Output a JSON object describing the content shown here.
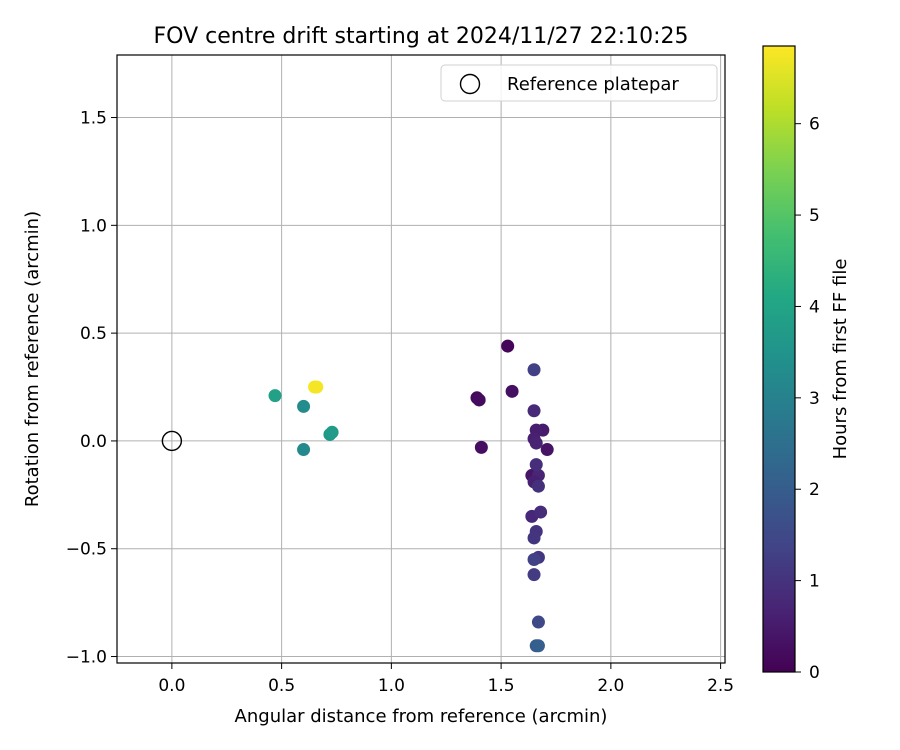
{
  "chart_data": {
    "type": "scatter",
    "title": "FOV centre drift starting at 2024/11/27 22:10:25",
    "xlabel": "Angular distance from reference (arcmin)",
    "ylabel": "Rotation from reference (arcmin)",
    "xlim": [
      -0.25,
      2.52
    ],
    "ylim": [
      -1.03,
      1.79
    ],
    "xticks": [
      0.0,
      0.5,
      1.0,
      1.5,
      2.0,
      2.5
    ],
    "yticks": [
      -1.0,
      -0.5,
      0.0,
      0.5,
      1.0,
      1.5
    ],
    "xtick_labels": [
      "0.0",
      "0.5",
      "1.0",
      "1.5",
      "2.0",
      "2.5"
    ],
    "ytick_labels": [
      "−1.0",
      "−0.5",
      "0.0",
      "0.5",
      "1.0",
      "1.5"
    ],
    "grid": true,
    "legend": {
      "position": "top-right",
      "entries": [
        "Reference platepar"
      ]
    },
    "reference_point": {
      "x": 0.0,
      "y": 0.0,
      "label": "Reference platepar"
    },
    "colorbar": {
      "label": "Hours from first FF file",
      "colormap": "viridis",
      "range": [
        0,
        6.85
      ],
      "ticks": [
        0,
        1,
        2,
        3,
        4,
        5,
        6
      ],
      "tick_labels": [
        "0",
        "1",
        "2",
        "3",
        "4",
        "5",
        "6"
      ]
    },
    "points": [
      {
        "x": 1.53,
        "y": 0.44,
        "hours": 0.1
      },
      {
        "x": 1.39,
        "y": 0.2,
        "hours": 0.15
      },
      {
        "x": 1.4,
        "y": 0.19,
        "hours": 0.2
      },
      {
        "x": 1.55,
        "y": 0.23,
        "hours": 0.3
      },
      {
        "x": 1.41,
        "y": -0.03,
        "hours": 0.25
      },
      {
        "x": 1.71,
        "y": -0.04,
        "hours": 0.35
      },
      {
        "x": 1.69,
        "y": 0.05,
        "hours": 0.5
      },
      {
        "x": 1.66,
        "y": 0.05,
        "hours": 0.55
      },
      {
        "x": 1.65,
        "y": 0.01,
        "hours": 0.6
      },
      {
        "x": 1.66,
        "y": -0.01,
        "hours": 0.65
      },
      {
        "x": 1.64,
        "y": -0.16,
        "hours": 0.4
      },
      {
        "x": 1.67,
        "y": -0.16,
        "hours": 0.7
      },
      {
        "x": 1.65,
        "y": -0.19,
        "hours": 0.6
      },
      {
        "x": 1.66,
        "y": -0.11,
        "hours": 0.9
      },
      {
        "x": 1.67,
        "y": -0.21,
        "hours": 0.95
      },
      {
        "x": 1.65,
        "y": 0.14,
        "hours": 0.8
      },
      {
        "x": 1.65,
        "y": 0.33,
        "hours": 1.3
      },
      {
        "x": 1.64,
        "y": -0.35,
        "hours": 0.75
      },
      {
        "x": 1.68,
        "y": -0.33,
        "hours": 0.85
      },
      {
        "x": 1.66,
        "y": -0.42,
        "hours": 1.0
      },
      {
        "x": 1.65,
        "y": -0.45,
        "hours": 1.05
      },
      {
        "x": 1.67,
        "y": -0.54,
        "hours": 1.1
      },
      {
        "x": 1.65,
        "y": -0.55,
        "hours": 1.35
      },
      {
        "x": 1.65,
        "y": -0.62,
        "hours": 1.2
      },
      {
        "x": 1.67,
        "y": -0.84,
        "hours": 1.5
      },
      {
        "x": 1.66,
        "y": -0.95,
        "hours": 1.95
      },
      {
        "x": 1.67,
        "y": -0.95,
        "hours": 2.05
      },
      {
        "x": 0.47,
        "y": 0.21,
        "hours": 3.9
      },
      {
        "x": 0.6,
        "y": 0.16,
        "hours": 3.3
      },
      {
        "x": 0.6,
        "y": -0.04,
        "hours": 3.2
      },
      {
        "x": 0.72,
        "y": 0.03,
        "hours": 3.6
      },
      {
        "x": 0.73,
        "y": 0.04,
        "hours": 3.7
      },
      {
        "x": 0.65,
        "y": 0.25,
        "hours": 6.8
      },
      {
        "x": 0.66,
        "y": 0.25,
        "hours": 6.75
      }
    ]
  }
}
